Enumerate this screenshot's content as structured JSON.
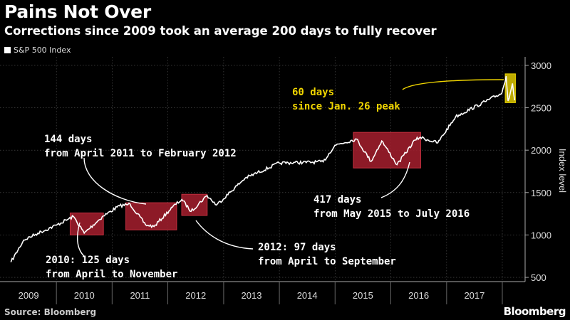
{
  "header": {
    "title": "Pains Not Over",
    "subtitle": "Corrections since 2009 took an average 200 days to fully recover"
  },
  "footer": {
    "source": "Source: Bloomberg",
    "brand": "Bloomberg"
  },
  "colors": {
    "background": "#000000",
    "line": "#ffffff",
    "box_red": "#a01e2c",
    "box_yellow": "#c8b400",
    "accent_text": "#f0d500"
  },
  "chart_data": {
    "type": "line",
    "title": "Pains Not Over",
    "subtitle": "Corrections since 2009 took an average 200 days to fully recover",
    "xlabel": "",
    "ylabel": "Index level",
    "ylim": [
      500,
      3000
    ],
    "y_ticks": [
      500,
      1000,
      1500,
      2000,
      2500,
      3000
    ],
    "x_ticks": [
      "2009",
      "2010",
      "2011",
      "2012",
      "2013",
      "2014",
      "2015",
      "2016",
      "2017"
    ],
    "legend": [
      "S&P 500 Index"
    ],
    "legend_position": "top-left",
    "grid": true,
    "series": [
      {
        "name": "S&P 500 Index",
        "points": [
          [
            "2009-03-09",
            680
          ],
          [
            "2009-06-01",
            940
          ],
          [
            "2009-09-01",
            1020
          ],
          [
            "2009-12-31",
            1115
          ],
          [
            "2010-04-23",
            1217
          ],
          [
            "2010-07-02",
            1022
          ],
          [
            "2010-11-05",
            1225
          ],
          [
            "2011-02-18",
            1343
          ],
          [
            "2011-04-29",
            1364
          ],
          [
            "2011-08-08",
            1120
          ],
          [
            "2011-10-03",
            1099
          ],
          [
            "2012-02-01",
            1330
          ],
          [
            "2012-04-02",
            1419
          ],
          [
            "2012-06-01",
            1278
          ],
          [
            "2012-09-14",
            1465
          ],
          [
            "2012-11-15",
            1353
          ],
          [
            "2013-05-21",
            1669
          ],
          [
            "2013-12-31",
            1848
          ],
          [
            "2014-10-15",
            1862
          ],
          [
            "2014-12-31",
            2058
          ],
          [
            "2015-05-21",
            2131
          ],
          [
            "2015-08-25",
            1867
          ],
          [
            "2015-11-03",
            2109
          ],
          [
            "2016-02-11",
            1829
          ],
          [
            "2016-06-08",
            2119
          ],
          [
            "2016-07-12",
            2152
          ],
          [
            "2016-11-04",
            2085
          ],
          [
            "2017-03-01",
            2395
          ],
          [
            "2017-12-29",
            2673
          ],
          [
            "2018-01-26",
            2873
          ],
          [
            "2018-02-08",
            2581
          ],
          [
            "2018-03-09",
            2786
          ],
          [
            "2018-03-23",
            2588
          ]
        ]
      }
    ],
    "corrections": [
      {
        "from": "2010-04-01",
        "to": "2010-11-05",
        "low": 1000,
        "high": 1260,
        "color": "red"
      },
      {
        "from": "2011-04-01",
        "to": "2012-02-28",
        "low": 1060,
        "high": 1380,
        "color": "red"
      },
      {
        "from": "2012-04-01",
        "to": "2012-09-15",
        "low": 1230,
        "high": 1480,
        "color": "red"
      },
      {
        "from": "2015-05-01",
        "to": "2016-07-15",
        "low": 1790,
        "high": 2210,
        "color": "red"
      },
      {
        "from": "2018-01-20",
        "to": "2018-03-28",
        "low": 2560,
        "high": 2900,
        "color": "yellow"
      }
    ],
    "annotations": [
      {
        "id": "a2011",
        "lines": [
          "144 days",
          "from April 2011 to February 2012"
        ]
      },
      {
        "id": "a2010",
        "lines": [
          "2010: 125 days",
          "from April to November"
        ]
      },
      {
        "id": "a2012",
        "lines": [
          "2012: 97 days",
          "from April to September"
        ]
      },
      {
        "id": "a2015",
        "lines": [
          "417 days",
          "from May 2015 to July 2016"
        ]
      },
      {
        "id": "a2018",
        "lines": [
          "60 days",
          "since Jan. 26 peak"
        ]
      }
    ]
  }
}
